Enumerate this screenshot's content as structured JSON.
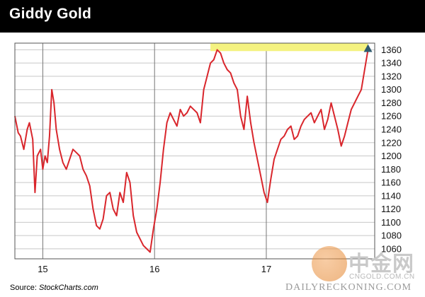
{
  "header": {
    "title": "Giddy Gold"
  },
  "source": {
    "label": "Source:",
    "name": "StockCharts.com"
  },
  "watermarks": {
    "logo_cn": "中金网",
    "logo_domain": "CNGOLD.COM.CN",
    "publisher": "DAILYRECKONING.COM"
  },
  "colors": {
    "line": "#d9262c",
    "highlight": "#f4f280",
    "arrow": "#2e5a6e",
    "grid": "#c8c8c8",
    "header_bg": "#000000"
  },
  "chart_data": {
    "type": "line",
    "title": "Giddy Gold",
    "xlabel": "",
    "ylabel": "",
    "x_ticks": [
      "15",
      "16",
      "17"
    ],
    "y_ticks": [
      1060,
      1080,
      1100,
      1120,
      1140,
      1160,
      1180,
      1200,
      1220,
      1240,
      1260,
      1280,
      1300,
      1320,
      1340,
      1360
    ],
    "ylim": [
      1045,
      1370
    ],
    "xlim": [
      2014.75,
      2017.97
    ],
    "grid": true,
    "y_axis_side": "right",
    "annotations": [
      {
        "type": "highlight_band",
        "x": [
          2016.5,
          2017.91
        ],
        "y": [
          1358,
          1370
        ]
      },
      {
        "type": "arrow_up",
        "x": 2017.91,
        "y": 1362
      }
    ],
    "series": [
      {
        "x": [
          2014.75,
          2014.78,
          2014.8,
          2014.83,
          2014.86,
          2014.88,
          2014.91,
          2014.93,
          2014.95,
          2014.98,
          2015.0,
          2015.02,
          2015.04,
          2015.06,
          2015.08,
          2015.1,
          2015.12,
          2015.15,
          2015.18,
          2015.21,
          2015.24,
          2015.27,
          2015.3,
          2015.33,
          2015.36,
          2015.39,
          2015.42,
          2015.45,
          2015.48,
          2015.51,
          2015.54,
          2015.57,
          2015.6,
          2015.63,
          2015.66,
          2015.69,
          2015.72,
          2015.75,
          2015.78,
          2015.81,
          2015.84,
          2015.87,
          2015.9,
          2015.93,
          2015.96,
          2015.99,
          2016.02,
          2016.05,
          2016.08,
          2016.11,
          2016.14,
          2016.17,
          2016.2,
          2016.23,
          2016.26,
          2016.29,
          2016.32,
          2016.35,
          2016.38,
          2016.41,
          2016.44,
          2016.47,
          2016.5,
          2016.53,
          2016.56,
          2016.59,
          2016.62,
          2016.65,
          2016.68,
          2016.71,
          2016.74,
          2016.77,
          2016.8,
          2016.83,
          2016.86,
          2016.89,
          2016.92,
          2016.95,
          2016.98,
          2017.01,
          2017.04,
          2017.07,
          2017.1,
          2017.13,
          2017.16,
          2017.19,
          2017.22,
          2017.25,
          2017.28,
          2017.31,
          2017.34,
          2017.37,
          2017.4,
          2017.43,
          2017.46,
          2017.49,
          2017.52,
          2017.55,
          2017.58,
          2017.61,
          2017.64,
          2017.67,
          2017.7,
          2017.73,
          2017.76,
          2017.79,
          2017.82,
          2017.85,
          2017.88,
          2017.91
        ],
        "values": [
          1260,
          1235,
          1230,
          1210,
          1240,
          1250,
          1225,
          1145,
          1200,
          1210,
          1180,
          1200,
          1190,
          1230,
          1300,
          1280,
          1240,
          1210,
          1190,
          1180,
          1195,
          1210,
          1205,
          1200,
          1180,
          1170,
          1155,
          1120,
          1095,
          1090,
          1105,
          1140,
          1145,
          1120,
          1110,
          1145,
          1130,
          1175,
          1160,
          1110,
          1085,
          1075,
          1065,
          1060,
          1055,
          1090,
          1120,
          1160,
          1210,
          1250,
          1265,
          1255,
          1245,
          1270,
          1260,
          1265,
          1275,
          1270,
          1265,
          1250,
          1300,
          1320,
          1340,
          1345,
          1360,
          1355,
          1340,
          1330,
          1325,
          1310,
          1300,
          1260,
          1240,
          1290,
          1250,
          1220,
          1195,
          1170,
          1145,
          1130,
          1165,
          1195,
          1210,
          1225,
          1230,
          1240,
          1245,
          1225,
          1230,
          1245,
          1255,
          1260,
          1265,
          1250,
          1260,
          1270,
          1240,
          1255,
          1280,
          1260,
          1240,
          1215,
          1230,
          1250,
          1270,
          1280,
          1290,
          1300,
          1330,
          1360
        ]
      }
    ]
  }
}
